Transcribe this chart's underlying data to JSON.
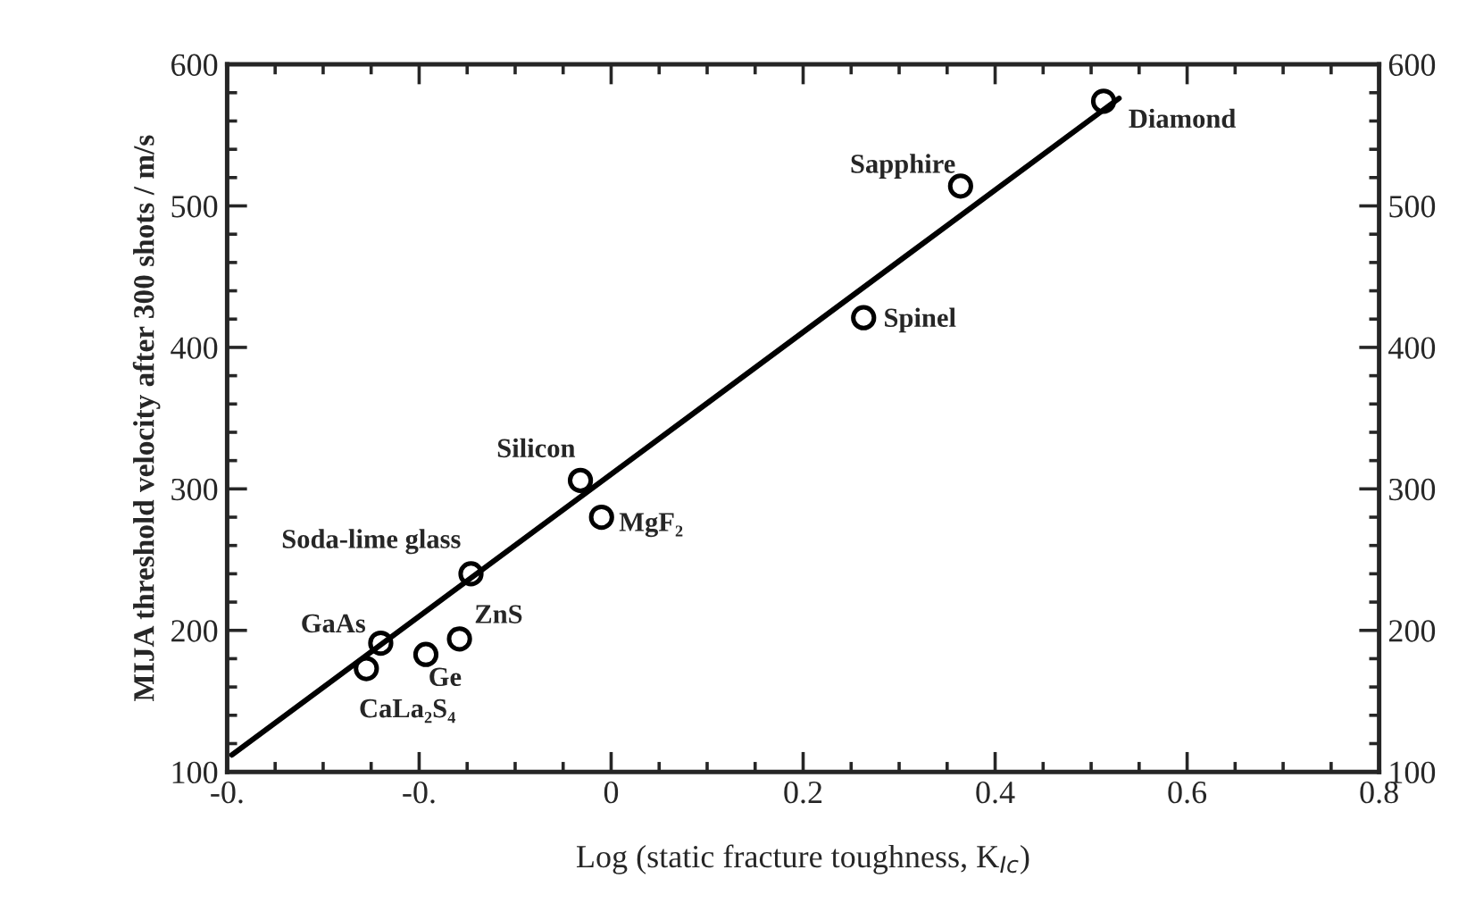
{
  "chart_data": {
    "type": "scatter",
    "xlabel": "Log (static fracture toughness, K$_{Ic}$)",
    "ylabel": "MIJA threshold velocity after 300 shots / m/s",
    "x": [
      0.513,
      0.364,
      0.263,
      -0.032,
      -0.01,
      -0.146,
      -0.158,
      -0.24,
      -0.193,
      -0.255
    ],
    "series": [
      {
        "type": "scatter",
        "color": "#000000",
        "marker": "circle",
        "values": [
          574,
          514,
          421,
          306,
          280,
          240,
          194,
          191,
          183,
          173
        ]
      },
      {
        "type": "line",
        "color": "#000000",
        "x": [
          -0.395,
          0.529
        ],
        "values": [
          112,
          576
        ]
      }
    ],
    "annotations": [
      {
        "text": "Diamond",
        "x": 0.513,
        "y": 574
      },
      {
        "text": "Sapphire",
        "x": 0.364,
        "y": 514
      },
      {
        "text": "Spinel",
        "x": 0.263,
        "y": 421
      },
      {
        "text": "Silicon",
        "x": -0.032,
        "y": 306
      },
      {
        "text": "MgF₂",
        "x": -0.01,
        "y": 280
      },
      {
        "text": "Soda-lime glass",
        "x": -0.146,
        "y": 240
      },
      {
        "text": "ZnS",
        "x": -0.158,
        "y": 194
      },
      {
        "text": "GaAs",
        "x": -0.24,
        "y": 191
      },
      {
        "text": "Ge",
        "x": -0.193,
        "y": 183
      },
      {
        "text": "CaLa₂S₄",
        "x": -0.255,
        "y": 173
      }
    ],
    "xlim": [
      -0.4,
      0.8
    ],
    "xticks": [
      {
        "value": -0.4,
        "label": "-0."
      },
      {
        "value": -0.2,
        "label": "-0."
      },
      0,
      0.2,
      0.4,
      0.6,
      0.8
    ],
    "ylim": [
      100,
      600
    ],
    "yticks": [
      100,
      200,
      300,
      400,
      500,
      600
    ],
    "y2lim": [
      100,
      600
    ],
    "y2ticks": [
      100,
      200,
      300,
      400,
      500,
      600
    ],
    "grid": false,
    "legend": false
  }
}
